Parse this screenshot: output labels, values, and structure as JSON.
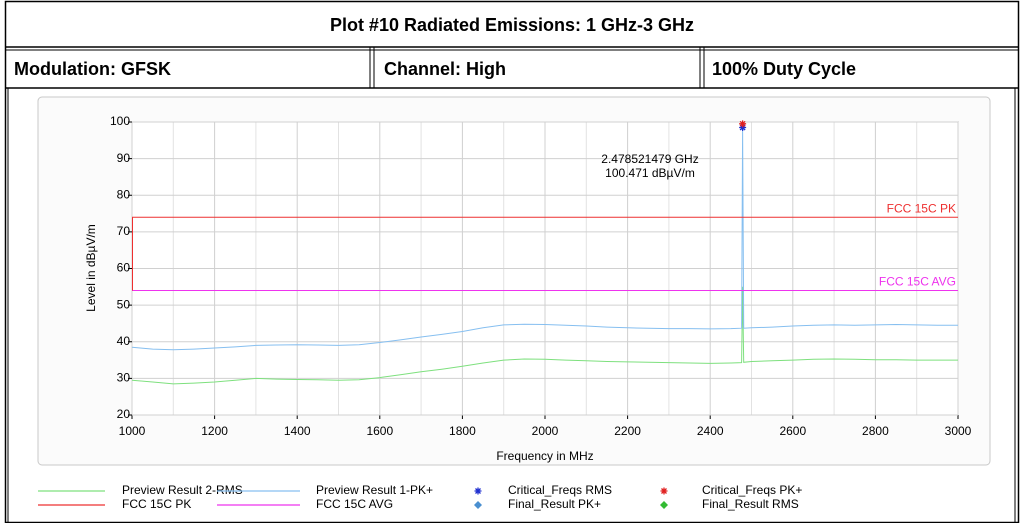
{
  "header": {
    "title": "Plot #10 Radiated Emissions: 1 GHz-3 GHz",
    "cells": [
      "Modulation: GFSK",
      "Channel: High",
      "100% Duty Cycle"
    ]
  },
  "chart_data": {
    "type": "line",
    "xlabel": "Frequency in MHz",
    "ylabel": "Level in dBµV/m",
    "xlim": [
      1000,
      3000
    ],
    "ylim": [
      20,
      100
    ],
    "xticks": [
      1000,
      1200,
      1400,
      1600,
      1800,
      2000,
      2200,
      2400,
      2600,
      2800,
      3000
    ],
    "yticks": [
      20,
      30,
      40,
      50,
      60,
      70,
      80,
      90,
      100
    ],
    "grid": true,
    "annotation": [
      "2.478521479 GHz",
      "100.471 dBµV/m"
    ],
    "series": [
      {
        "name": "Preview Result 2-RMS",
        "color": "#7ee07e",
        "kind": "line",
        "x": [
          1000,
          1050,
          1100,
          1150,
          1200,
          1250,
          1300,
          1350,
          1400,
          1450,
          1500,
          1550,
          1600,
          1650,
          1700,
          1750,
          1800,
          1850,
          1900,
          1950,
          2000,
          2050,
          2100,
          2150,
          2200,
          2250,
          2300,
          2350,
          2400,
          2450,
          2476,
          2478.5,
          2481,
          2500,
          2550,
          2600,
          2650,
          2700,
          2750,
          2800,
          2850,
          2900,
          2950,
          3000
        ],
        "values": [
          29.5,
          29,
          28.5,
          28.7,
          29,
          29.5,
          30,
          29.8,
          29.7,
          29.6,
          29.5,
          29.6,
          30.2,
          31,
          31.8,
          32.5,
          33.3,
          34.2,
          35,
          35.3,
          35.2,
          35,
          34.8,
          34.6,
          34.5,
          34.4,
          34.3,
          34.2,
          34.1,
          34.2,
          34.3,
          55,
          34.4,
          34.6,
          34.8,
          35,
          35.2,
          35.3,
          35.2,
          35.1,
          35.1,
          35,
          35,
          35
        ]
      },
      {
        "name": "Preview Result 1-PK+",
        "color": "#86bff0",
        "kind": "line",
        "x": [
          1000,
          1050,
          1100,
          1150,
          1200,
          1250,
          1300,
          1350,
          1400,
          1450,
          1500,
          1550,
          1600,
          1650,
          1700,
          1750,
          1800,
          1850,
          1900,
          1950,
          2000,
          2050,
          2100,
          2150,
          2200,
          2250,
          2300,
          2350,
          2400,
          2450,
          2476,
          2478.5,
          2481,
          2500,
          2550,
          2600,
          2650,
          2700,
          2750,
          2800,
          2850,
          2900,
          2950,
          3000
        ],
        "values": [
          38.5,
          38,
          37.8,
          38,
          38.3,
          38.6,
          39,
          39.1,
          39.2,
          39.1,
          39,
          39.2,
          39.8,
          40.5,
          41.3,
          42,
          42.8,
          43.8,
          44.6,
          44.8,
          44.7,
          44.5,
          44.3,
          44,
          43.8,
          43.7,
          43.6,
          43.6,
          43.5,
          43.6,
          43.7,
          98,
          43.7,
          43.8,
          44,
          44.3,
          44.5,
          44.6,
          44.5,
          44.6,
          44.7,
          44.6,
          44.5,
          44.5
        ]
      },
      {
        "name": "Critical_Freqs RMS",
        "color": "#1f2fd0",
        "kind": "star",
        "x": [
          2478.5
        ],
        "values": [
          98.5
        ]
      },
      {
        "name": "Critical_Freqs PK+",
        "color": "#e02020",
        "kind": "star",
        "x": [
          2478.5
        ],
        "values": [
          99.5
        ]
      },
      {
        "name": "FCC 15C PK",
        "color": "#ee3030",
        "kind": "limit",
        "x": [
          1000,
          3000
        ],
        "values": [
          74,
          74
        ]
      },
      {
        "name": "FCC 15C AVG",
        "color": "#ee33ee",
        "kind": "limit",
        "x": [
          1000,
          3000
        ],
        "values": [
          54,
          54
        ]
      },
      {
        "name": "Final_Result PK+",
        "color": "#4a8fd0",
        "kind": "diamond",
        "x": [],
        "values": []
      },
      {
        "name": "Final_Result RMS",
        "color": "#33bb33",
        "kind": "diamond",
        "x": [],
        "values": []
      }
    ]
  }
}
